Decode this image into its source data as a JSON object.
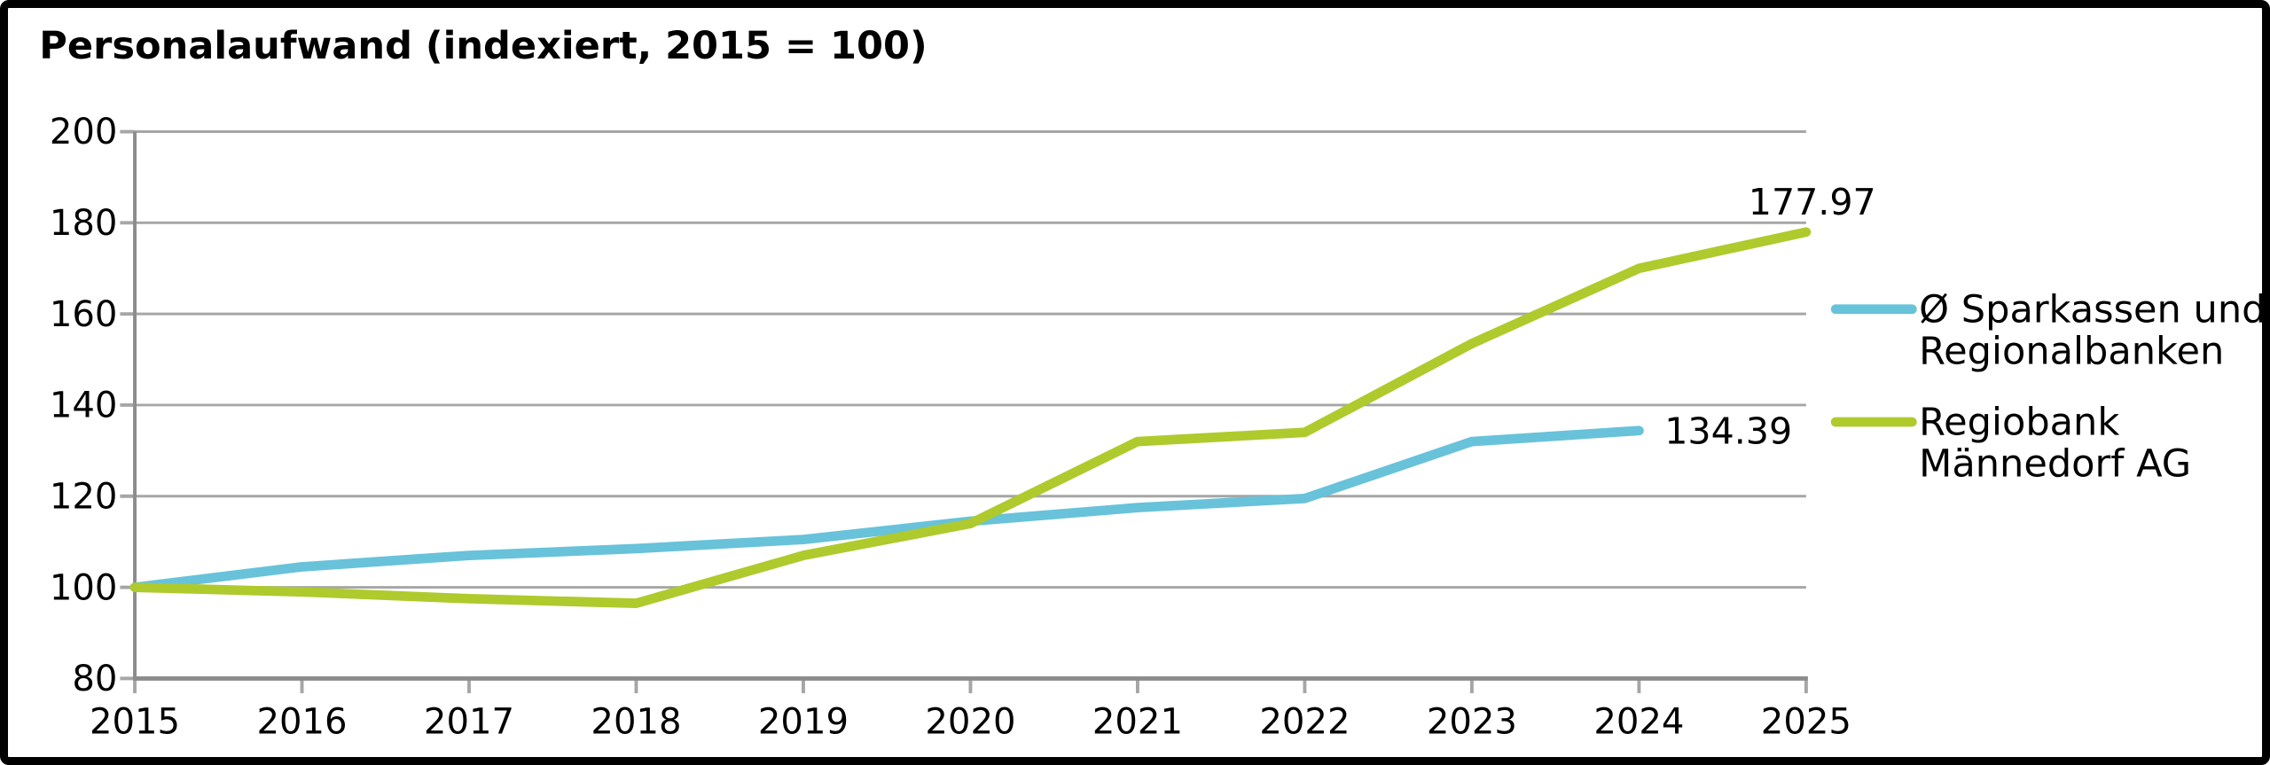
{
  "chart_data": {
    "type": "line",
    "title": "Personalaufwand (indexiert, 2015 = 100)",
    "x": [
      2015,
      2016,
      2017,
      2018,
      2019,
      2020,
      2021,
      2022,
      2023,
      2024,
      2025
    ],
    "x_tick_labels": [
      "2015",
      "2016",
      "2017",
      "2018",
      "2019",
      "2020",
      "2021",
      "2022",
      "2023",
      "2024",
      "2025"
    ],
    "ylim": [
      80,
      200
    ],
    "yticks": [
      80,
      100,
      120,
      140,
      160,
      180,
      200
    ],
    "grid": true,
    "legend_position": "right",
    "series": [
      {
        "name": "Ø Sparkassen und Regionalbanken",
        "legend_lines": [
          "Ø Sparkassen und",
          "Regionalbanken"
        ],
        "color": "#68C2DA",
        "values": [
          100,
          104.5,
          107,
          108.5,
          110.5,
          114.5,
          117.5,
          119.5,
          132,
          134.39
        ],
        "end_label": "134.39",
        "end_label_placement": "right-of-end"
      },
      {
        "name": "Regiobank Männedorf AG",
        "legend_lines": [
          "Regiobank",
          "Männedorf AG"
        ],
        "color": "#AECA2D",
        "values": [
          100,
          99,
          97.5,
          96.5,
          107,
          114,
          132,
          134,
          153.5,
          170,
          177.97
        ],
        "end_label": "177.97",
        "end_label_placement": "above-end"
      }
    ],
    "colors": {
      "grid": "#A6A6A6",
      "axis": "#8C8C8C",
      "text": "#000000",
      "background": "#FFFFFF",
      "frame_border": "#000000"
    }
  }
}
